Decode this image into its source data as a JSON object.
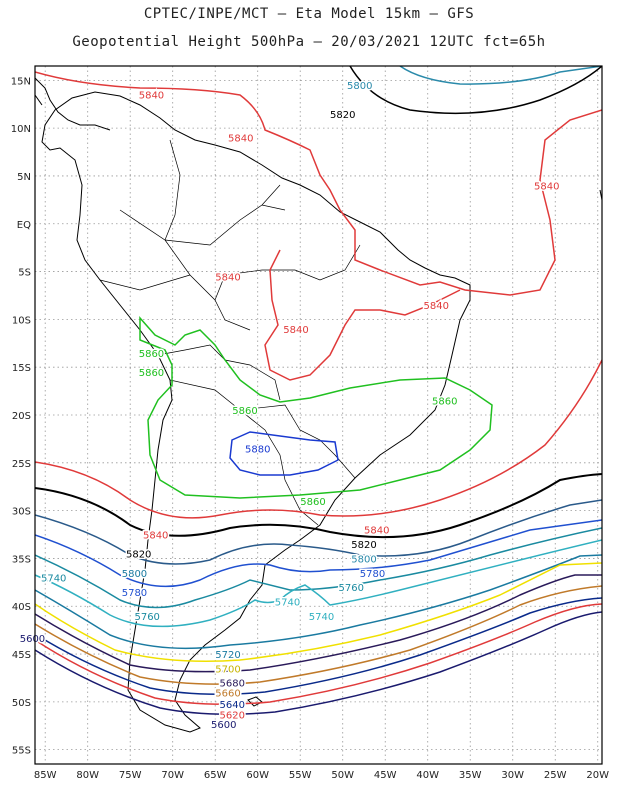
{
  "title": {
    "line1": "CPTEC/INPE/MCT –  Eta Model 15km – GFS",
    "line2": "Geopotential Height 500hPa – 20/03/2021 12UTC fct=65h"
  },
  "axes": {
    "lat_ticks": [
      "15N",
      "10N",
      "5N",
      "EQ",
      "5S",
      "10S",
      "15S",
      "20S",
      "25S",
      "30S",
      "35S",
      "40S",
      "45S",
      "50S",
      "55S"
    ],
    "lon_ticks": [
      "85W",
      "80W",
      "75W",
      "70W",
      "65W",
      "60W",
      "55W",
      "50W",
      "45W",
      "40W",
      "35W",
      "30W",
      "25W",
      "20W"
    ],
    "grid": true
  },
  "colors": {
    "c5600": "#1a1a6e",
    "c5620": "#e03a3a",
    "c5640": "#0a2a8a",
    "c5660": "#c07a2a",
    "c5680": "#2a1a5a",
    "c5700": "#f0e000",
    "c5720": "#1a7aa0",
    "c5740": "#30b0c0",
    "c5760": "#1a8aa0",
    "c5780": "#2050d0",
    "c5800": "#2a8aaa",
    "c5820": "#000000",
    "c5840": "#e03a3a",
    "c5860": "#20c020",
    "c5880": "#1a3ad0",
    "coast": "#000000"
  },
  "contour_labels": [
    {
      "text": "5800",
      "lon": -48,
      "lat": 14.5,
      "color": "#2a8aaa"
    },
    {
      "text": "5820",
      "lon": -50,
      "lat": 11.5,
      "color": "#000000"
    },
    {
      "text": "5840",
      "lon": -72.5,
      "lat": 13.5,
      "color": "#e03a3a"
    },
    {
      "text": "5840",
      "lon": -62,
      "lat": 9.0,
      "color": "#e03a3a"
    },
    {
      "text": "5840",
      "lon": -26,
      "lat": 4.0,
      "color": "#e03a3a"
    },
    {
      "text": "5840",
      "lon": -63.5,
      "lat": -5.5,
      "color": "#e03a3a"
    },
    {
      "text": "5840",
      "lon": -39,
      "lat": -8.5,
      "color": "#e03a3a"
    },
    {
      "text": "5840",
      "lon": -55.5,
      "lat": -11.0,
      "color": "#e03a3a"
    },
    {
      "text": "5860",
      "lon": -72.5,
      "lat": -13.5,
      "color": "#20c020"
    },
    {
      "text": "5860",
      "lon": -72.5,
      "lat": -15.5,
      "color": "#20c020"
    },
    {
      "text": "5860",
      "lon": -61.5,
      "lat": -19.5,
      "color": "#20c020"
    },
    {
      "text": "5860",
      "lon": -38,
      "lat": -18.5,
      "color": "#20c020"
    },
    {
      "text": "5880",
      "lon": -60,
      "lat": -23.5,
      "color": "#1a3ad0"
    },
    {
      "text": "5860",
      "lon": -53.5,
      "lat": -29.0,
      "color": "#20c020"
    },
    {
      "text": "5840",
      "lon": -72,
      "lat": -32.5,
      "color": "#e03a3a"
    },
    {
      "text": "5840",
      "lon": -46,
      "lat": -32.0,
      "color": "#e03a3a"
    },
    {
      "text": "5820",
      "lon": -74,
      "lat": -34.5,
      "color": "#000000"
    },
    {
      "text": "5820",
      "lon": -47.5,
      "lat": -33.5,
      "color": "#000000"
    },
    {
      "text": "5800",
      "lon": -47.5,
      "lat": -35.0,
      "color": "#2a8aaa"
    },
    {
      "text": "5800",
      "lon": -74.5,
      "lat": -36.5,
      "color": "#1a7aa0"
    },
    {
      "text": "5780",
      "lon": -46.5,
      "lat": -36.5,
      "color": "#2050d0"
    },
    {
      "text": "5780",
      "lon": -74.5,
      "lat": -38.5,
      "color": "#2050d0"
    },
    {
      "text": "5760",
      "lon": -49,
      "lat": -38.0,
      "color": "#1a8aa0"
    },
    {
      "text": "5740",
      "lon": -84,
      "lat": -37.0,
      "color": "#1a8aa0"
    },
    {
      "text": "5740",
      "lon": -56.5,
      "lat": -39.5,
      "color": "#30b0c0"
    },
    {
      "text": "5740",
      "lon": -52.5,
      "lat": -41.0,
      "color": "#30b0c0"
    },
    {
      "text": "5760",
      "lon": -73,
      "lat": -41.0,
      "color": "#1a8aa0"
    },
    {
      "text": "5720",
      "lon": -63.5,
      "lat": -45.0,
      "color": "#1a7aa0"
    },
    {
      "text": "5700",
      "lon": -63.5,
      "lat": -46.5,
      "color": "#c8b400"
    },
    {
      "text": "5680",
      "lon": -63,
      "lat": -48.0,
      "color": "#2a1a5a"
    },
    {
      "text": "5660",
      "lon": -63.5,
      "lat": -49.0,
      "color": "#c07a2a"
    },
    {
      "text": "5640",
      "lon": -63,
      "lat": -50.2,
      "color": "#0a2a8a"
    },
    {
      "text": "5620",
      "lon": -63,
      "lat": -51.3,
      "color": "#e03a3a"
    },
    {
      "text": "5600",
      "lon": -64,
      "lat": -52.3,
      "color": "#1a1a6e"
    },
    {
      "text": "5600",
      "lon": -86.5,
      "lat": -43.3,
      "color": "#1a1a6e"
    }
  ]
}
